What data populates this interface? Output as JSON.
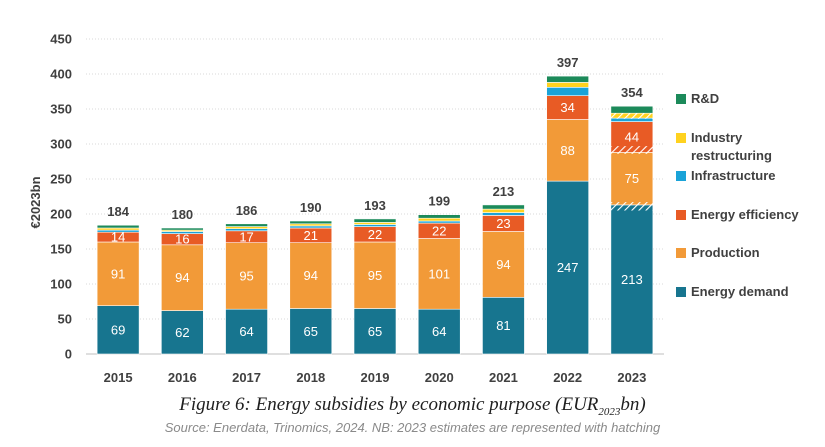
{
  "chart_data": {
    "type": "bar",
    "stacked": true,
    "title": "",
    "xlabel": "",
    "ylabel": "€2023bn",
    "ylim": [
      0,
      450
    ],
    "yticks": [
      0,
      50,
      100,
      150,
      200,
      250,
      300,
      350,
      400,
      450
    ],
    "categories": [
      "2015",
      "2016",
      "2017",
      "2018",
      "2019",
      "2020",
      "2021",
      "2022",
      "2023"
    ],
    "series": [
      {
        "name": "Energy demand",
        "color": "#17758f",
        "values": [
          69,
          62,
          64,
          65,
          65,
          64,
          81,
          247,
          213
        ]
      },
      {
        "name": "Production",
        "color": "#f29a38",
        "values": [
          91,
          94,
          95,
          94,
          95,
          101,
          94,
          88,
          75
        ]
      },
      {
        "name": "Energy efficiency",
        "color": "#e85b25",
        "values": [
          14,
          16,
          17,
          21,
          22,
          22,
          23,
          34,
          44
        ]
      },
      {
        "name": "Infrastructure",
        "color": "#1aa3d8",
        "values": [
          3,
          3,
          3,
          3,
          3,
          3,
          4,
          12,
          5
        ]
      },
      {
        "name": "Industry restructuring",
        "color": "#ffd21f",
        "values": [
          3,
          2,
          3,
          3,
          3,
          4,
          5,
          7,
          7
        ]
      },
      {
        "name": "R&D",
        "color": "#1c8a5a",
        "values": [
          4,
          3,
          4,
          4,
          5,
          5,
          6,
          9,
          10
        ]
      }
    ],
    "segment_labels": {
      "Energy demand": [
        "69",
        "62",
        "64",
        "65",
        "65",
        "64",
        "81",
        "247",
        "213"
      ],
      "Production": [
        "91",
        "94",
        "95",
        "94",
        "95",
        "101",
        "94",
        "88",
        "75"
      ],
      "Energy efficiency": [
        "14",
        "16",
        "17",
        "21",
        "22",
        "22",
        "23",
        "34",
        "44"
      ]
    },
    "totals": [
      "184",
      "180",
      "186",
      "190",
      "193",
      "199",
      "213",
      "397",
      "354"
    ],
    "legend": [
      "R&D",
      "Industry restructuring",
      "Infrastructure",
      "Energy efficiency",
      "Production",
      "Energy demand"
    ],
    "legend_position": "right",
    "grid": true
  },
  "caption": {
    "prefix": "Figure 6: Energy subsidies by economic purpose (EUR",
    "sub": "2023",
    "suffix": "bn)"
  },
  "source": "Source: Enerdata, Trinomics, 2024. NB: 2023 estimates are represented with hatching"
}
